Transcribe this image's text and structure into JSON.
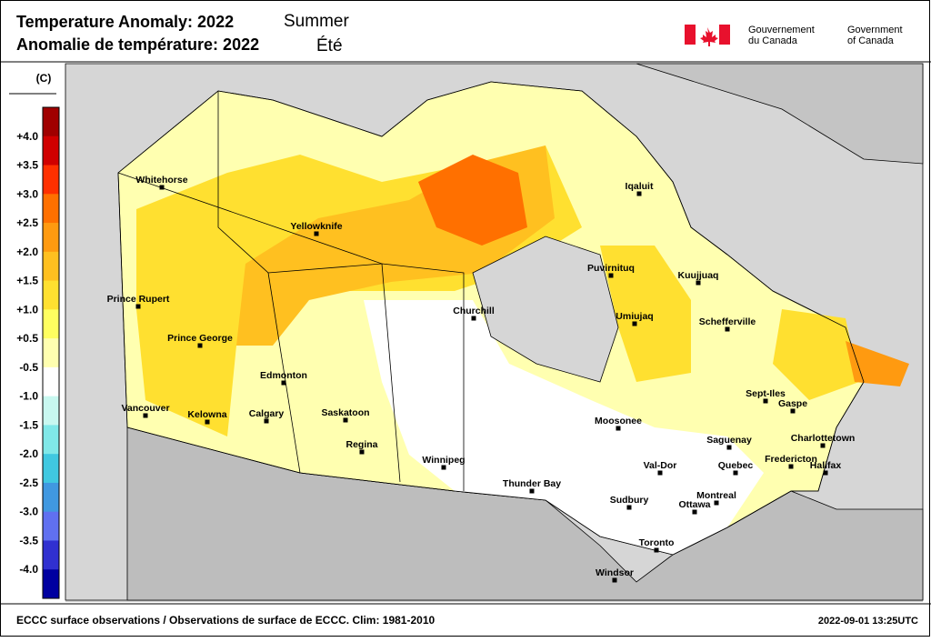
{
  "header": {
    "title_en": "Temperature Anomaly: 2022",
    "season_en": "Summer",
    "title_fr": "Anomalie de température: 2022",
    "season_fr": "Été",
    "gov_fr_1": "Gouvernement",
    "gov_fr_2": "du Canada",
    "gov_en_1": "Government",
    "gov_en_2": "of Canada"
  },
  "legend": {
    "unit": "(C)",
    "labels": [
      "+4.0",
      "+3.5",
      "+3.0",
      "+2.5",
      "+2.0",
      "+1.5",
      "+1.0",
      "+0.5",
      "-0.5",
      "-1.0",
      "-1.5",
      "-2.0",
      "-2.5",
      "-3.0",
      "-3.5",
      "-4.0"
    ],
    "colors": [
      "#a00000",
      "#d00000",
      "#ff3000",
      "#ff7000",
      "#ff9a10",
      "#ffc020",
      "#ffe030",
      "#ffff60",
      "#ffffb0",
      "#ffffff",
      "#c8f8f0",
      "#80e8e8",
      "#40c8e0",
      "#4098e0",
      "#6070f0",
      "#3030d0",
      "#0000a0"
    ]
  },
  "map": {
    "cities": [
      "Whitehorse",
      "Yellowknife",
      "Prince Rupert",
      "Prince George",
      "Edmonton",
      "Calgary",
      "Vancouver",
      "Kelowna",
      "Saskatoon",
      "Regina",
      "Winnipeg",
      "Churchill",
      "Thunder Bay",
      "Moosonee",
      "Sudbury",
      "Toronto",
      "Windsor",
      "Ottawa",
      "Montreal",
      "Val-Dor",
      "Quebec",
      "Saguenay",
      "Sept-Iles",
      "Gaspe",
      "Charlottetown",
      "Fredericton",
      "Halifax",
      "Schefferville",
      "Umiujaq",
      "Puvirnituq",
      "Kuujjuaq",
      "Iqaluit"
    ]
  },
  "footer": {
    "source": "ECCC surface observations / Observations de surface de ECCC. Clim: 1981-2010",
    "timestamp": "2022-09-01 13:25UTC"
  }
}
